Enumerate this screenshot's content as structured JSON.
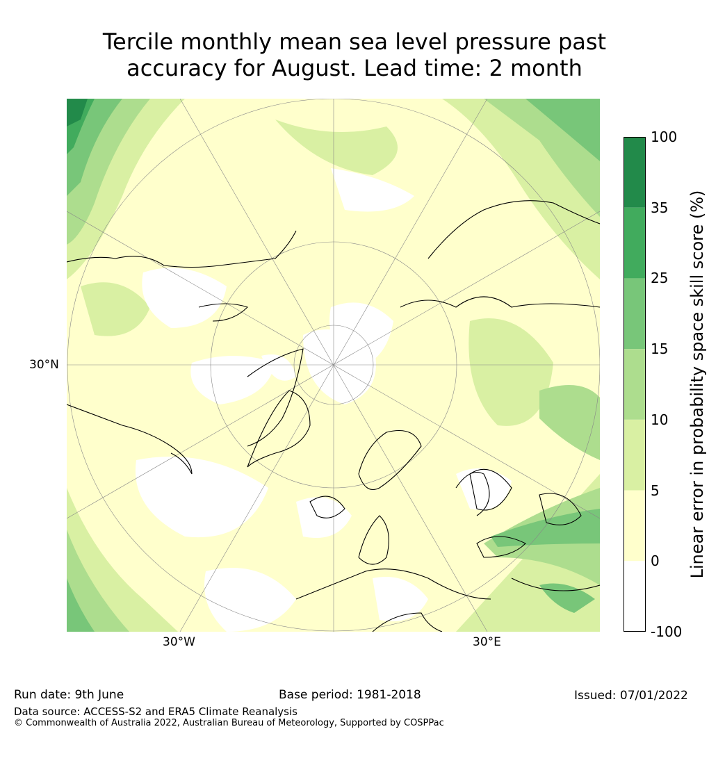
{
  "title_line1": "Tercile monthly mean sea level pressure past",
  "title_line2": "accuracy for August. Lead time: 2 month",
  "map": {
    "projection": "north-polar-stereographic",
    "latitude_label": "30°N",
    "longitude_labels": [
      "30°W",
      "30°E"
    ],
    "graticule": true,
    "coastlines": true
  },
  "colorbar": {
    "label": "Linear error in probability space skill score (%)",
    "ticks": [
      "100",
      "35",
      "25",
      "15",
      "10",
      "5",
      "0",
      "-100"
    ],
    "bins": [
      {
        "range": "35 to 100",
        "color": "#228a4a"
      },
      {
        "range": "25 to 35",
        "color": "#41ab5d"
      },
      {
        "range": "15 to 25",
        "color": "#78c679"
      },
      {
        "range": "10 to 15",
        "color": "#addd8e"
      },
      {
        "range": "5 to 10",
        "color": "#d9f0a3"
      },
      {
        "range": "0 to 5",
        "color": "#ffffcc"
      },
      {
        "range": "-100 to 0",
        "color": "#ffffff"
      }
    ]
  },
  "footer": {
    "run_date": "Run date: 9th June",
    "base_period": "Base period: 1981-2018",
    "issued": "Issued: 07/01/2022",
    "data_source": "Data source: ACCESS-S2 and ERA5 Climate Reanalysis",
    "copyright": "© Commonwealth of Australia 2022, Australian Bureau of Meteorology, Supported by COSPPac"
  }
}
